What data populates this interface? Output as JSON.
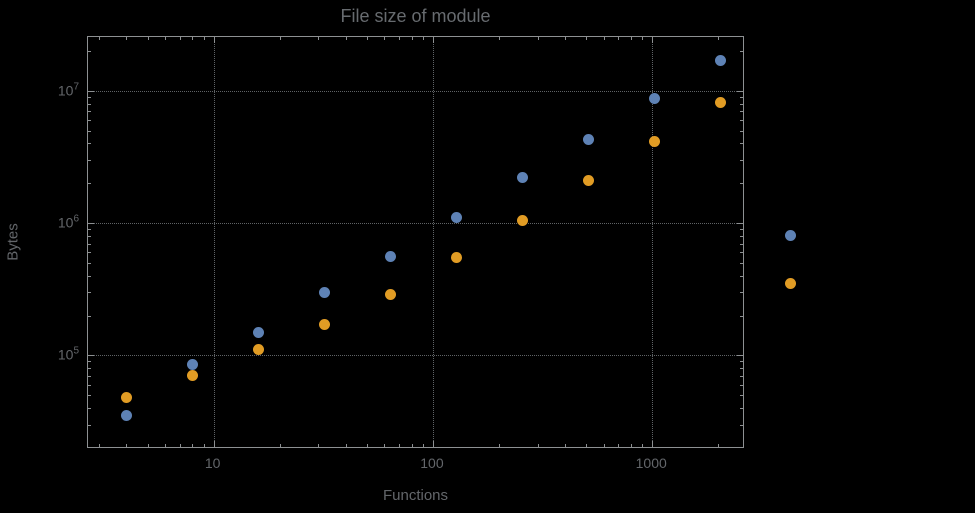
{
  "chart_data": {
    "type": "scatter",
    "title": "File size of module",
    "xlabel": "Functions",
    "ylabel": "Bytes",
    "x_scale": "log",
    "y_scale": "log",
    "x_axis": {
      "log10_range": [
        0.427,
        3.414
      ],
      "ticks": [
        {
          "value": 10,
          "label": "10"
        },
        {
          "value": 100,
          "label": "100"
        },
        {
          "value": 1000,
          "label": "1000"
        }
      ]
    },
    "y_axis": {
      "log10_range": [
        4.308,
        7.406
      ],
      "ticks": [
        {
          "value": 100000,
          "base": "10",
          "exponent": "5"
        },
        {
          "value": 1000000,
          "base": "10",
          "exponent": "6"
        },
        {
          "value": 10000000,
          "base": "10",
          "exponent": "7"
        }
      ]
    },
    "grid": {
      "style": "dotted",
      "at": "decades",
      "color": "#5f6366"
    },
    "x": [
      4,
      8,
      16,
      32,
      64,
      128,
      256,
      512,
      1024,
      2048
    ],
    "series": [
      {
        "name": "blue",
        "color": "#5e82b5",
        "values": [
          35000,
          85000,
          150000,
          300000,
          560000,
          1100000,
          2200000,
          4300000,
          8800000,
          17000000
        ]
      },
      {
        "name": "orange",
        "color": "#e19c24",
        "values": [
          48000,
          70000,
          110000,
          170000,
          290000,
          550000,
          1050000,
          2100000,
          4100000,
          8200000
        ]
      }
    ],
    "legend": {
      "markers": [
        {
          "name": "blue",
          "color": "#5e82b5"
        },
        {
          "name": "orange",
          "color": "#e19c24"
        }
      ]
    }
  }
}
